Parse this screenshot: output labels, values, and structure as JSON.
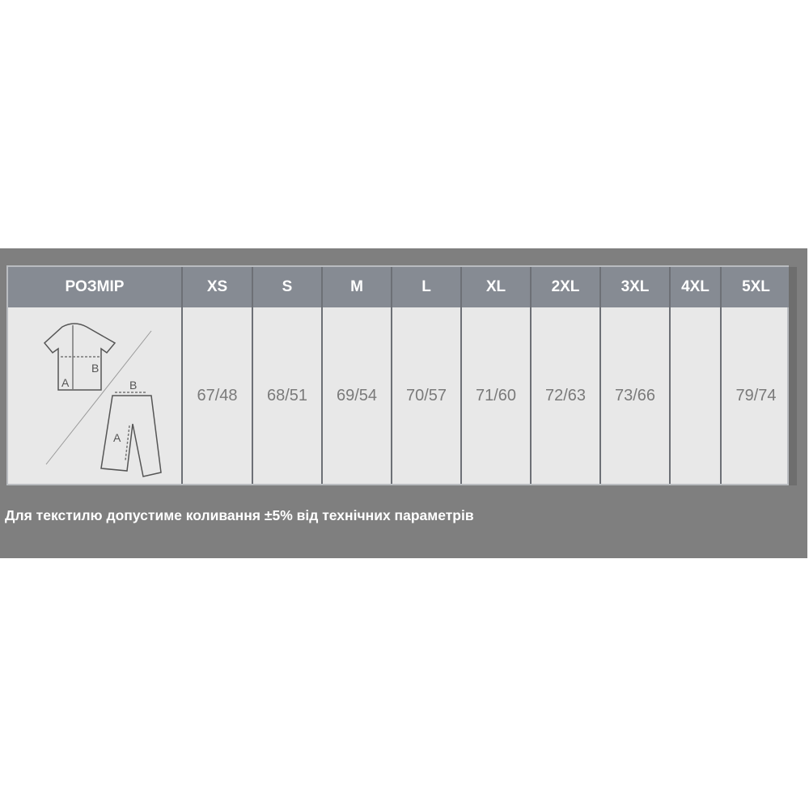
{
  "table": {
    "header_label": "РОЗМІР",
    "sizes": [
      "XS",
      "S",
      "M",
      "L",
      "XL",
      "2XL",
      "3XL",
      "4XL",
      "5XL"
    ],
    "values": [
      "67/48",
      "68/51",
      "69/54",
      "70/57",
      "71/60",
      "72/63",
      "73/66",
      "",
      "79/74"
    ],
    "diagram": {
      "shirt_labels": [
        "A",
        "B"
      ],
      "pants_labels": [
        "A",
        "B"
      ]
    }
  },
  "note": "Для текстилю допустиме коливання ±5% від технічних параметрів",
  "colors": {
    "panel": "#7f7f7f",
    "header": "#868b93",
    "body": "#e8e8e8"
  }
}
